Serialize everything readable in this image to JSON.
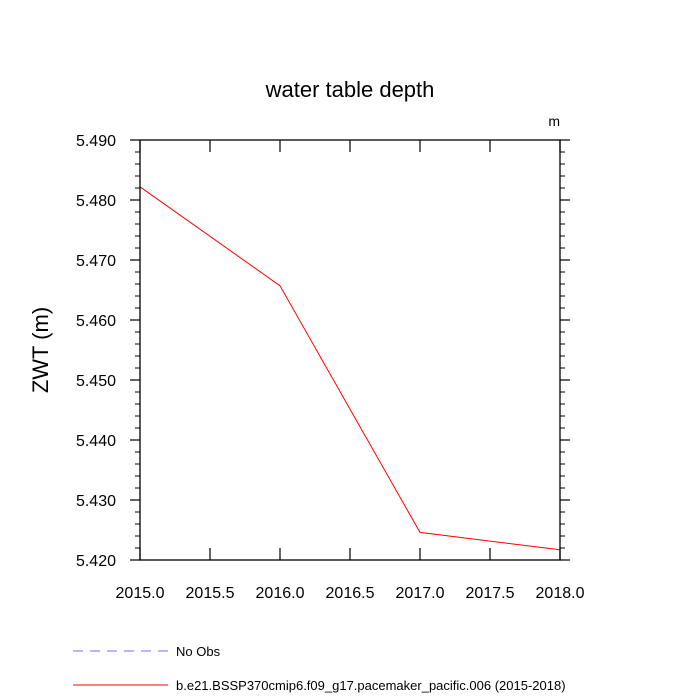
{
  "chart_data": {
    "type": "line",
    "title": "water table depth",
    "units": "m",
    "xlabel": "",
    "ylabel": "ZWT  (m)",
    "xlim": [
      2015.0,
      2018.0
    ],
    "ylim": [
      5.42,
      5.49
    ],
    "x_ticks": [
      2015.0,
      2015.5,
      2016.0,
      2016.5,
      2017.0,
      2017.5,
      2018.0
    ],
    "x_tick_labels": [
      "2015.0",
      "2015.5",
      "2016.0",
      "2016.5",
      "2017.0",
      "2017.5",
      "2018.0"
    ],
    "y_ticks": [
      5.42,
      5.43,
      5.44,
      5.45,
      5.46,
      5.47,
      5.48,
      5.49
    ],
    "y_tick_labels": [
      "5.420",
      "5.430",
      "5.440",
      "5.450",
      "5.460",
      "5.470",
      "5.480",
      "5.490"
    ],
    "series": [
      {
        "name": "b.e21.BSSP370cmip6.f09_g17.pacemaker_pacific.006 (2015-2018)",
        "color": "#ff0000",
        "style": "solid",
        "x": [
          2015.0,
          2016.0,
          2017.0,
          2018.0
        ],
        "values": [
          5.4822,
          5.4657,
          5.4246,
          5.4217
        ]
      }
    ],
    "legend": [
      {
        "label": "No Obs",
        "color": "#6f6fff",
        "style": "dashed"
      },
      {
        "label": "b.e21.BSSP370cmip6.f09_g17.pacemaker_pacific.006 (2015-2018)",
        "color": "#ff0000",
        "style": "solid"
      }
    ]
  }
}
